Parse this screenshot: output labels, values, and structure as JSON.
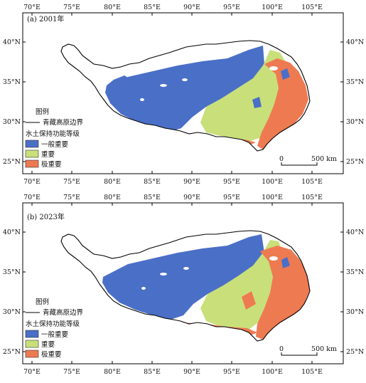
{
  "panels": [
    {
      "id": "a",
      "label": "(a) 2001年",
      "legend_title": "图例",
      "boundary_label": "青藏高原边界",
      "level_title": "水土保持功能等级",
      "classes": [
        {
          "name": "一般重要",
          "color": "#4a6fc7"
        },
        {
          "name": "重要",
          "color": "#c9e07a"
        },
        {
          "name": "极重要",
          "color": "#ee7a52"
        }
      ],
      "scalebar": {
        "start": "0",
        "end": "500 km"
      },
      "x_ticks": [
        "70°E",
        "75°E",
        "80°E",
        "85°E",
        "90°E",
        "95°E",
        "100°E",
        "105°E"
      ],
      "y_ticks": [
        "25°N",
        "30°N",
        "35°N",
        "40°N"
      ]
    },
    {
      "id": "b",
      "label": "(b) 2023年",
      "legend_title": "图例",
      "boundary_label": "青藏高原边界",
      "level_title": "水土保持功能等级",
      "classes": [
        {
          "name": "一般重要",
          "color": "#4a6fc7"
        },
        {
          "name": "重要",
          "color": "#c9e07a"
        },
        {
          "name": "极重要",
          "color": "#ee7a52"
        }
      ],
      "scalebar": {
        "start": "0",
        "end": "500 km"
      },
      "x_ticks": [
        "70°E",
        "75°E",
        "80°E",
        "85°E",
        "90°E",
        "95°E",
        "100°E",
        "105°E"
      ],
      "y_ticks": [
        "25°N",
        "30°N",
        "35°N",
        "40°N"
      ]
    }
  ]
}
